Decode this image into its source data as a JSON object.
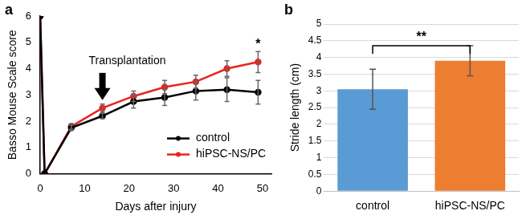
{
  "chart_data": [
    {
      "type": "line",
      "title": "a",
      "x_label": "Days after injury",
      "y_label": "Basso Mouse Scale score",
      "x": [
        0,
        1,
        7,
        14,
        21,
        28,
        35,
        42,
        49
      ],
      "series": [
        {
          "name": "control",
          "color": "#000000",
          "marker": "circle",
          "values": [
            6,
            0,
            1.75,
            2.2,
            2.75,
            2.9,
            3.15,
            3.2,
            3.1
          ],
          "errors": [
            null,
            null,
            0.1,
            0.1,
            0.25,
            0.3,
            0.35,
            0.45,
            0.45
          ]
        },
        {
          "name": "hiPSC-NS/PC",
          "color": "#e8231f",
          "marker": "circle",
          "values": [
            6,
            0,
            1.8,
            2.5,
            2.95,
            3.3,
            3.5,
            4.0,
            4.25
          ],
          "errors": [
            null,
            null,
            0.1,
            0.15,
            0.2,
            0.25,
            0.25,
            0.3,
            0.4
          ]
        }
      ],
      "xlim": [
        0,
        52
      ],
      "xticks": [
        0,
        10,
        20,
        30,
        40,
        50
      ],
      "ylim": [
        0,
        6
      ],
      "yticks": [
        0,
        1,
        2,
        3,
        4,
        5,
        6
      ],
      "grid": false,
      "legend": "lower right",
      "annotations": [
        {
          "text": "Transplantation",
          "x": 14,
          "y": 2.8
        },
        {
          "text": "*",
          "x": 49,
          "y": 4.9
        }
      ]
    },
    {
      "type": "bar",
      "title": "b",
      "y_label": "Stride length (cm)",
      "categories": [
        "control",
        "hiPSC-NS/PC"
      ],
      "values": [
        3.05,
        3.9
      ],
      "errors": [
        0.6,
        0.45
      ],
      "colors": [
        "#5b9bd5",
        "#ed7d31"
      ],
      "ylim": [
        0,
        5
      ],
      "yticks": [
        0,
        0.5,
        1,
        1.5,
        2,
        2.5,
        3,
        3.5,
        4,
        4.5,
        5
      ],
      "grid": true,
      "annotations": [
        {
          "text": "**",
          "y": 4.35
        }
      ]
    }
  ]
}
